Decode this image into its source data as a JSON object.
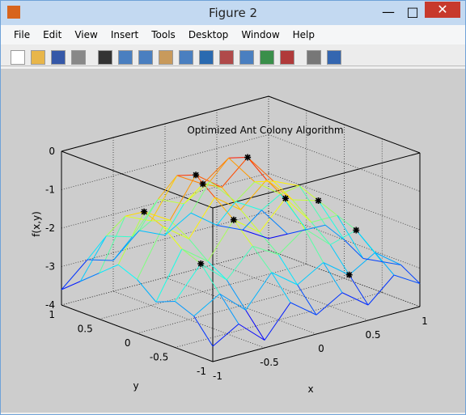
{
  "window": {
    "title": "Figure 2",
    "menu": [
      "File",
      "Edit",
      "View",
      "Insert",
      "Tools",
      "Desktop",
      "Window",
      "Help"
    ]
  },
  "chart_data": {
    "type": "mesh3d",
    "title": "Optimized Ant Colony Algorithm",
    "x_label": "x",
    "y_label": "y",
    "z_label": "f(x,y)",
    "x": [
      -1,
      -0.75,
      -0.5,
      -0.25,
      0,
      0.25,
      0.5,
      0.75,
      1
    ],
    "y": [
      -1,
      -0.75,
      -0.5,
      -0.25,
      0,
      0.25,
      0.5,
      0.75,
      1
    ],
    "z": [
      [
        -3.6,
        -3.2,
        -3.8,
        -3.0,
        -3.5,
        -3.1,
        -3.6,
        -3.0,
        -3.4
      ],
      [
        -3.0,
        -2.6,
        -3.2,
        -2.4,
        -2.9,
        -2.5,
        -3.0,
        -2.6,
        -3.1
      ],
      [
        -2.8,
        -2.0,
        -2.6,
        -1.9,
        -2.3,
        -1.8,
        -2.4,
        -2.2,
        -3.2
      ],
      [
        -3.0,
        -1.8,
        -2.3,
        -1.4,
        -1.9,
        -1.2,
        -2.0,
        -2.0,
        -3.3
      ],
      [
        -2.6,
        -1.4,
        -1.9,
        -1.0,
        -1.5,
        -0.9,
        -1.6,
        -1.8,
        -3.0
      ],
      [
        -2.4,
        -1.2,
        -1.6,
        -0.6,
        -1.1,
        -0.5,
        -1.3,
        -1.6,
        -2.8
      ],
      [
        -2.8,
        -1.5,
        -1.8,
        -0.8,
        -1.2,
        -0.7,
        -1.5,
        -2.0,
        -3.1
      ],
      [
        -3.2,
        -2.2,
        -2.4,
        -1.6,
        -1.9,
        -1.5,
        -2.2,
        -2.6,
        -3.4
      ],
      [
        -3.6,
        -3.0,
        -3.2,
        -2.6,
        -2.9,
        -2.5,
        -3.0,
        -3.3,
        -3.7
      ]
    ],
    "colormap": "jet",
    "points": {
      "color": "#000000",
      "x": [
        -0.25,
        0.25,
        -0.75,
        0.75,
        0,
        -0.25,
        0.25,
        -0.75,
        0.5,
        0.75
      ],
      "y": [
        0.25,
        0.25,
        0.25,
        0,
        0.5,
        -0.25,
        -0.25,
        -0.5,
        -0.75,
        -0.5
      ],
      "z": [
        -0.6,
        -0.5,
        -1.2,
        -1.8,
        -1.2,
        -1.4,
        -1.2,
        -2.0,
        -3.0,
        -2.2
      ]
    },
    "xlim": [
      -1,
      1
    ],
    "ylim": [
      -1,
      1
    ],
    "zlim": [
      -4,
      0
    ],
    "xticks": [
      -1,
      -0.5,
      0,
      0.5,
      1
    ],
    "yticks": [
      -1,
      -0.5,
      0,
      0.5,
      1
    ],
    "zticks": [
      -4,
      -3,
      -2,
      -1,
      0
    ],
    "grid": true
  }
}
